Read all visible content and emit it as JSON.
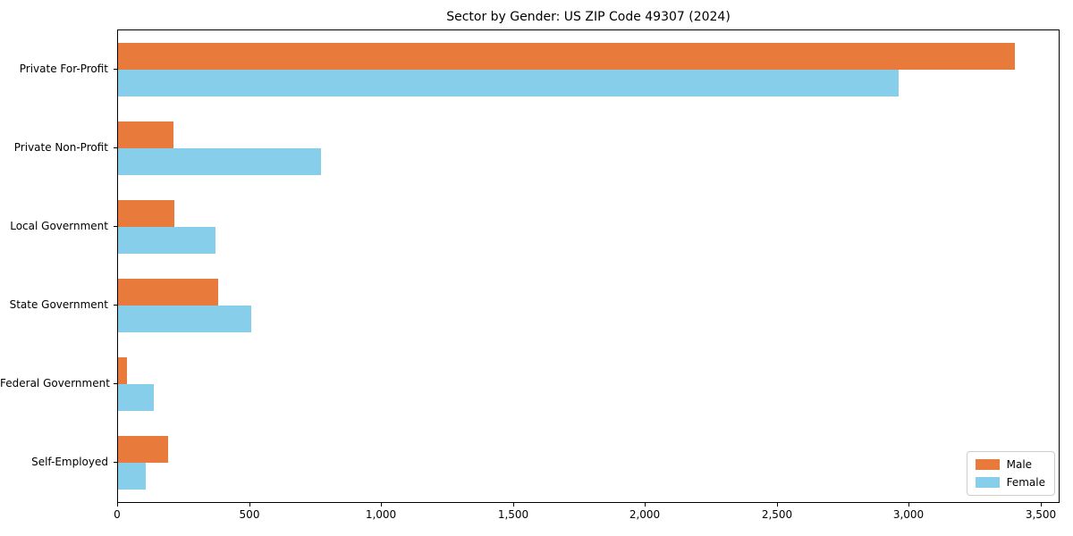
{
  "chart_data": {
    "type": "bar",
    "orientation": "horizontal",
    "title": "Sector by Gender: US ZIP Code 49307 (2024)",
    "categories": [
      "Private For-Profit",
      "Private Non-Profit",
      "Local Government",
      "State Government",
      "Federal Government",
      "Self-Employed"
    ],
    "series": [
      {
        "name": "Male",
        "color": "#E87A3C",
        "values": [
          3400,
          210,
          215,
          380,
          35,
          190
        ]
      },
      {
        "name": "Female",
        "color": "#87CEEB",
        "values": [
          2960,
          770,
          370,
          505,
          135,
          105
        ]
      }
    ],
    "xlabel": "",
    "ylabel": "",
    "xlim": [
      0,
      3566
    ],
    "xticks": [
      0,
      500,
      1000,
      1500,
      2000,
      2500,
      3000,
      3500
    ],
    "xtick_labels": [
      "0",
      "500",
      "1,000",
      "1,500",
      "2,000",
      "2,500",
      "3,000",
      "3,500"
    ],
    "grid": false,
    "legend_position": "lower right",
    "colors": {
      "male": "#E87A3C",
      "female": "#87CEEB",
      "axis": "#000000",
      "background": "#ffffff"
    }
  }
}
